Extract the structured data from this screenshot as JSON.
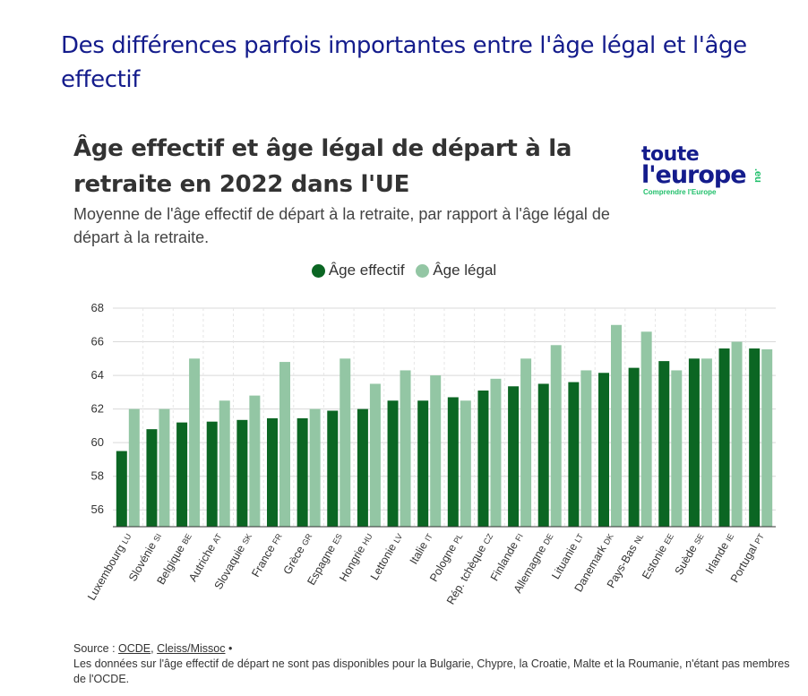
{
  "page_title": "Des différences parfois importantes entre l'âge légal et l'âge effectif",
  "chart_title": "Âge effectif et âge légal de départ à la retraite en 2022 dans l'UE",
  "chart_subtitle": "Moyenne de l'âge effectif de départ à la retraite, par rapport à l'âge légal de départ à la retraite.",
  "logo": {
    "line1": "toute",
    "line2": "l'europe",
    "suffix": ".eu",
    "tagline": "Comprendre l'Europe"
  },
  "colors": {
    "effective": "#0b6623",
    "legal": "#93c6a4",
    "title": "#141c8c",
    "grid": "#d9d9d9"
  },
  "chart_data": {
    "type": "bar",
    "legend": [
      "Âge effectif",
      "Âge légal"
    ],
    "categories": [
      "Luxembourg LU",
      "Slovénie SI",
      "Belgique BE",
      "Autriche AT",
      "Slovaquie SK",
      "France FR",
      "Grèce GR",
      "Espagne ES",
      "Hongrie HU",
      "Lettonie LV",
      "Italie IT",
      "Pologne PL",
      "Rép. tchèque CZ",
      "Finlande FI",
      "Allemagne DE",
      "Lituanie LT",
      "Danemark DK",
      "Pays-Bas NL",
      "Estonie EE",
      "Suède SE",
      "Irlande IE",
      "Portugal PT"
    ],
    "series": [
      {
        "name": "Âge effectif",
        "values": [
          59.5,
          60.8,
          61.2,
          61.25,
          61.35,
          61.45,
          61.45,
          61.9,
          62.0,
          62.5,
          62.5,
          62.7,
          63.1,
          63.35,
          63.5,
          63.6,
          64.15,
          64.45,
          64.85,
          65.0,
          65.6,
          65.6
        ]
      },
      {
        "name": "Âge légal",
        "values": [
          62.0,
          62.0,
          65.0,
          62.5,
          62.8,
          64.8,
          62.0,
          65.0,
          63.5,
          64.3,
          64.0,
          62.5,
          63.8,
          65.0,
          65.8,
          64.3,
          67.0,
          66.6,
          64.3,
          65.0,
          66.0,
          65.55
        ]
      }
    ],
    "yticks": [
      56,
      58,
      60,
      62,
      64,
      66,
      68
    ],
    "ylim": [
      55,
      68
    ],
    "xlabel": "",
    "ylabel": ""
  },
  "source": {
    "prefix": "Source : ",
    "link1": "OCDE",
    "separator": ", ",
    "link2": "Cleiss/Missoc",
    "bullet": " •",
    "note": "Les données sur l'âge effectif de départ ne sont pas disponibles pour la Bulgarie, Chypre, la Croatie, Malte et la Roumanie, n'étant pas membres de l'OCDE."
  }
}
